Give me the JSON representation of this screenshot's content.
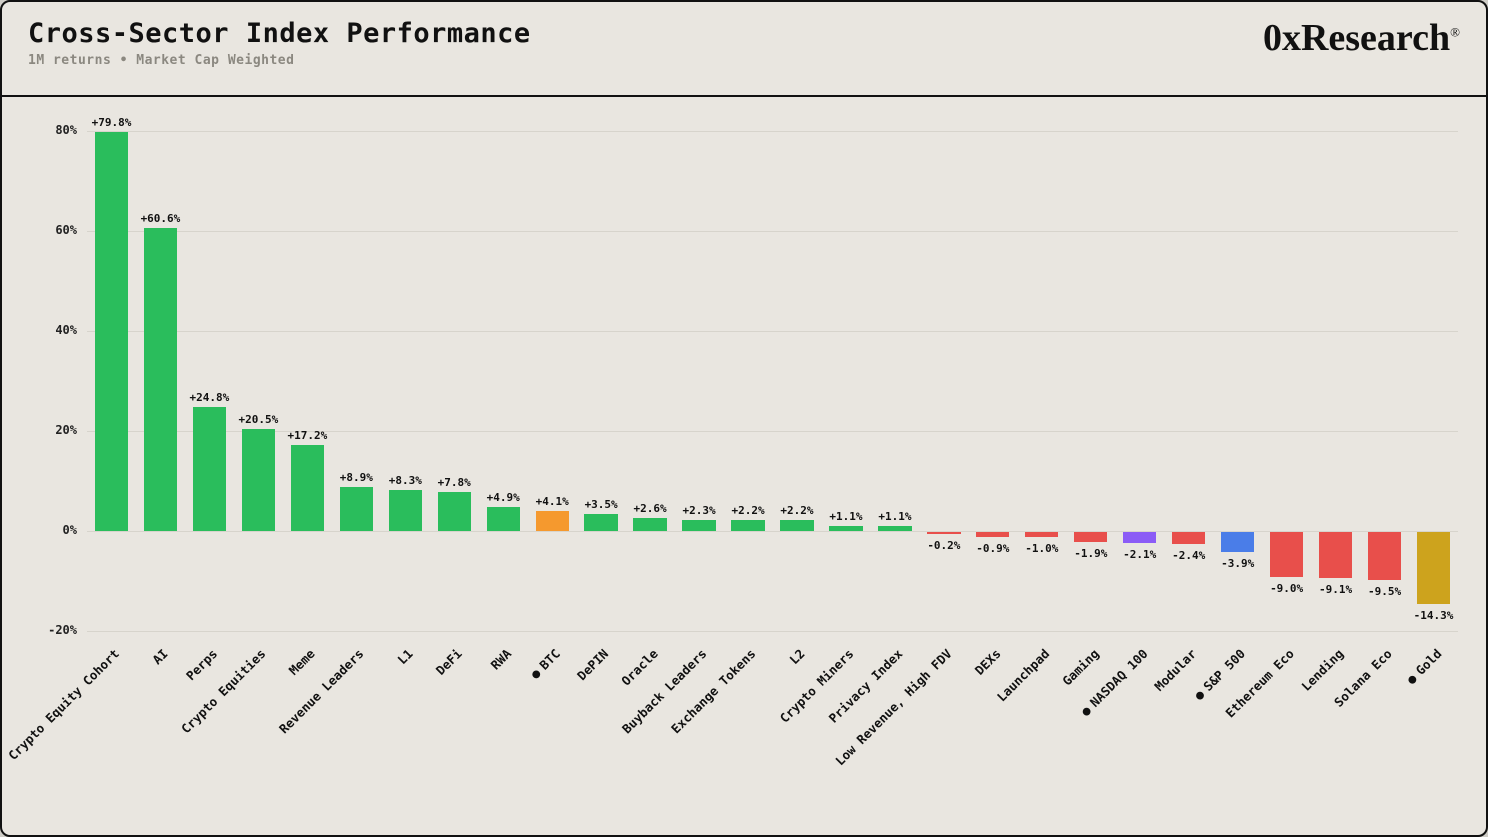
{
  "header": {
    "title": "Cross-Sector Index Performance",
    "subtitle": "1M returns • Market Cap Weighted",
    "logo": "0xResearch",
    "logo_mark": "®"
  },
  "colors": {
    "background": "#e9e6e0",
    "frame_border": "#111111",
    "grid": "#d7d4cc",
    "text": "#111111",
    "subtitle_text": "#8b8880"
  },
  "chart_data": {
    "type": "bar",
    "title": "Cross-Sector Index Performance",
    "subtitle": "1M returns • Market Cap Weighted",
    "xlabel": "",
    "ylabel": "",
    "ylim": [
      -21,
      84
    ],
    "yticks": [
      80,
      60,
      40,
      20,
      0,
      -20
    ],
    "ytick_labels": [
      "80%",
      "60%",
      "40%",
      "20%",
      "0%",
      "-20%"
    ],
    "grid": true,
    "legend": "none",
    "palette": {
      "green": "#2abd5c",
      "red": "#e84f4b",
      "orange": "#f5992e",
      "purple": "#8b5cf6",
      "blue": "#4a7de8",
      "gold": "#cda31d"
    },
    "bars": [
      {
        "label": "Crypto Equity Cohort",
        "value": 79.8,
        "display": "+79.8%",
        "color": "green",
        "benchmark": false
      },
      {
        "label": "AI",
        "value": 60.6,
        "display": "+60.6%",
        "color": "green",
        "benchmark": false
      },
      {
        "label": "Perps",
        "value": 24.8,
        "display": "+24.8%",
        "color": "green",
        "benchmark": false
      },
      {
        "label": "Crypto Equities",
        "value": 20.5,
        "display": "+20.5%",
        "color": "green",
        "benchmark": false
      },
      {
        "label": "Meme",
        "value": 17.2,
        "display": "+17.2%",
        "color": "green",
        "benchmark": false
      },
      {
        "label": "Revenue Leaders",
        "value": 8.9,
        "display": "+8.9%",
        "color": "green",
        "benchmark": false
      },
      {
        "label": "L1",
        "value": 8.3,
        "display": "+8.3%",
        "color": "green",
        "benchmark": false
      },
      {
        "label": "DeFi",
        "value": 7.8,
        "display": "+7.8%",
        "color": "green",
        "benchmark": false
      },
      {
        "label": "RWA",
        "value": 4.9,
        "display": "+4.9%",
        "color": "green",
        "benchmark": false
      },
      {
        "label": "BTC",
        "value": 4.1,
        "display": "+4.1%",
        "color": "orange",
        "benchmark": true
      },
      {
        "label": "DePIN",
        "value": 3.5,
        "display": "+3.5%",
        "color": "green",
        "benchmark": false
      },
      {
        "label": "Oracle",
        "value": 2.6,
        "display": "+2.6%",
        "color": "green",
        "benchmark": false
      },
      {
        "label": "Buyback Leaders",
        "value": 2.3,
        "display": "+2.3%",
        "color": "green",
        "benchmark": false
      },
      {
        "label": "Exchange Tokens",
        "value": 2.2,
        "display": "+2.2%",
        "color": "green",
        "benchmark": false
      },
      {
        "label": "L2",
        "value": 2.2,
        "display": "+2.2%",
        "color": "green",
        "benchmark": false
      },
      {
        "label": "Crypto Miners",
        "value": 1.1,
        "display": "+1.1%",
        "color": "green",
        "benchmark": false
      },
      {
        "label": "Privacy Index",
        "value": 1.1,
        "display": "+1.1%",
        "color": "green",
        "benchmark": false
      },
      {
        "label": "Low Revenue, High FDV",
        "value": -0.2,
        "display": "-0.2%",
        "color": "red",
        "benchmark": false
      },
      {
        "label": "DEXs",
        "value": -0.9,
        "display": "-0.9%",
        "color": "red",
        "benchmark": false
      },
      {
        "label": "Launchpad",
        "value": -1.0,
        "display": "-1.0%",
        "color": "red",
        "benchmark": false
      },
      {
        "label": "Gaming",
        "value": -1.9,
        "display": "-1.9%",
        "color": "red",
        "benchmark": false
      },
      {
        "label": "NASDAQ 100",
        "value": -2.1,
        "display": "-2.1%",
        "color": "purple",
        "benchmark": true
      },
      {
        "label": "Modular",
        "value": -2.4,
        "display": "-2.4%",
        "color": "red",
        "benchmark": false
      },
      {
        "label": "S&P 500",
        "value": -3.9,
        "display": "-3.9%",
        "color": "blue",
        "benchmark": true
      },
      {
        "label": "Ethereum Eco",
        "value": -9.0,
        "display": "-9.0%",
        "color": "red",
        "benchmark": false
      },
      {
        "label": "Lending",
        "value": -9.1,
        "display": "-9.1%",
        "color": "red",
        "benchmark": false
      },
      {
        "label": "Solana Eco",
        "value": -9.5,
        "display": "-9.5%",
        "color": "red",
        "benchmark": false
      },
      {
        "label": "Gold",
        "value": -14.3,
        "display": "-14.3%",
        "color": "gold",
        "benchmark": true
      }
    ]
  }
}
